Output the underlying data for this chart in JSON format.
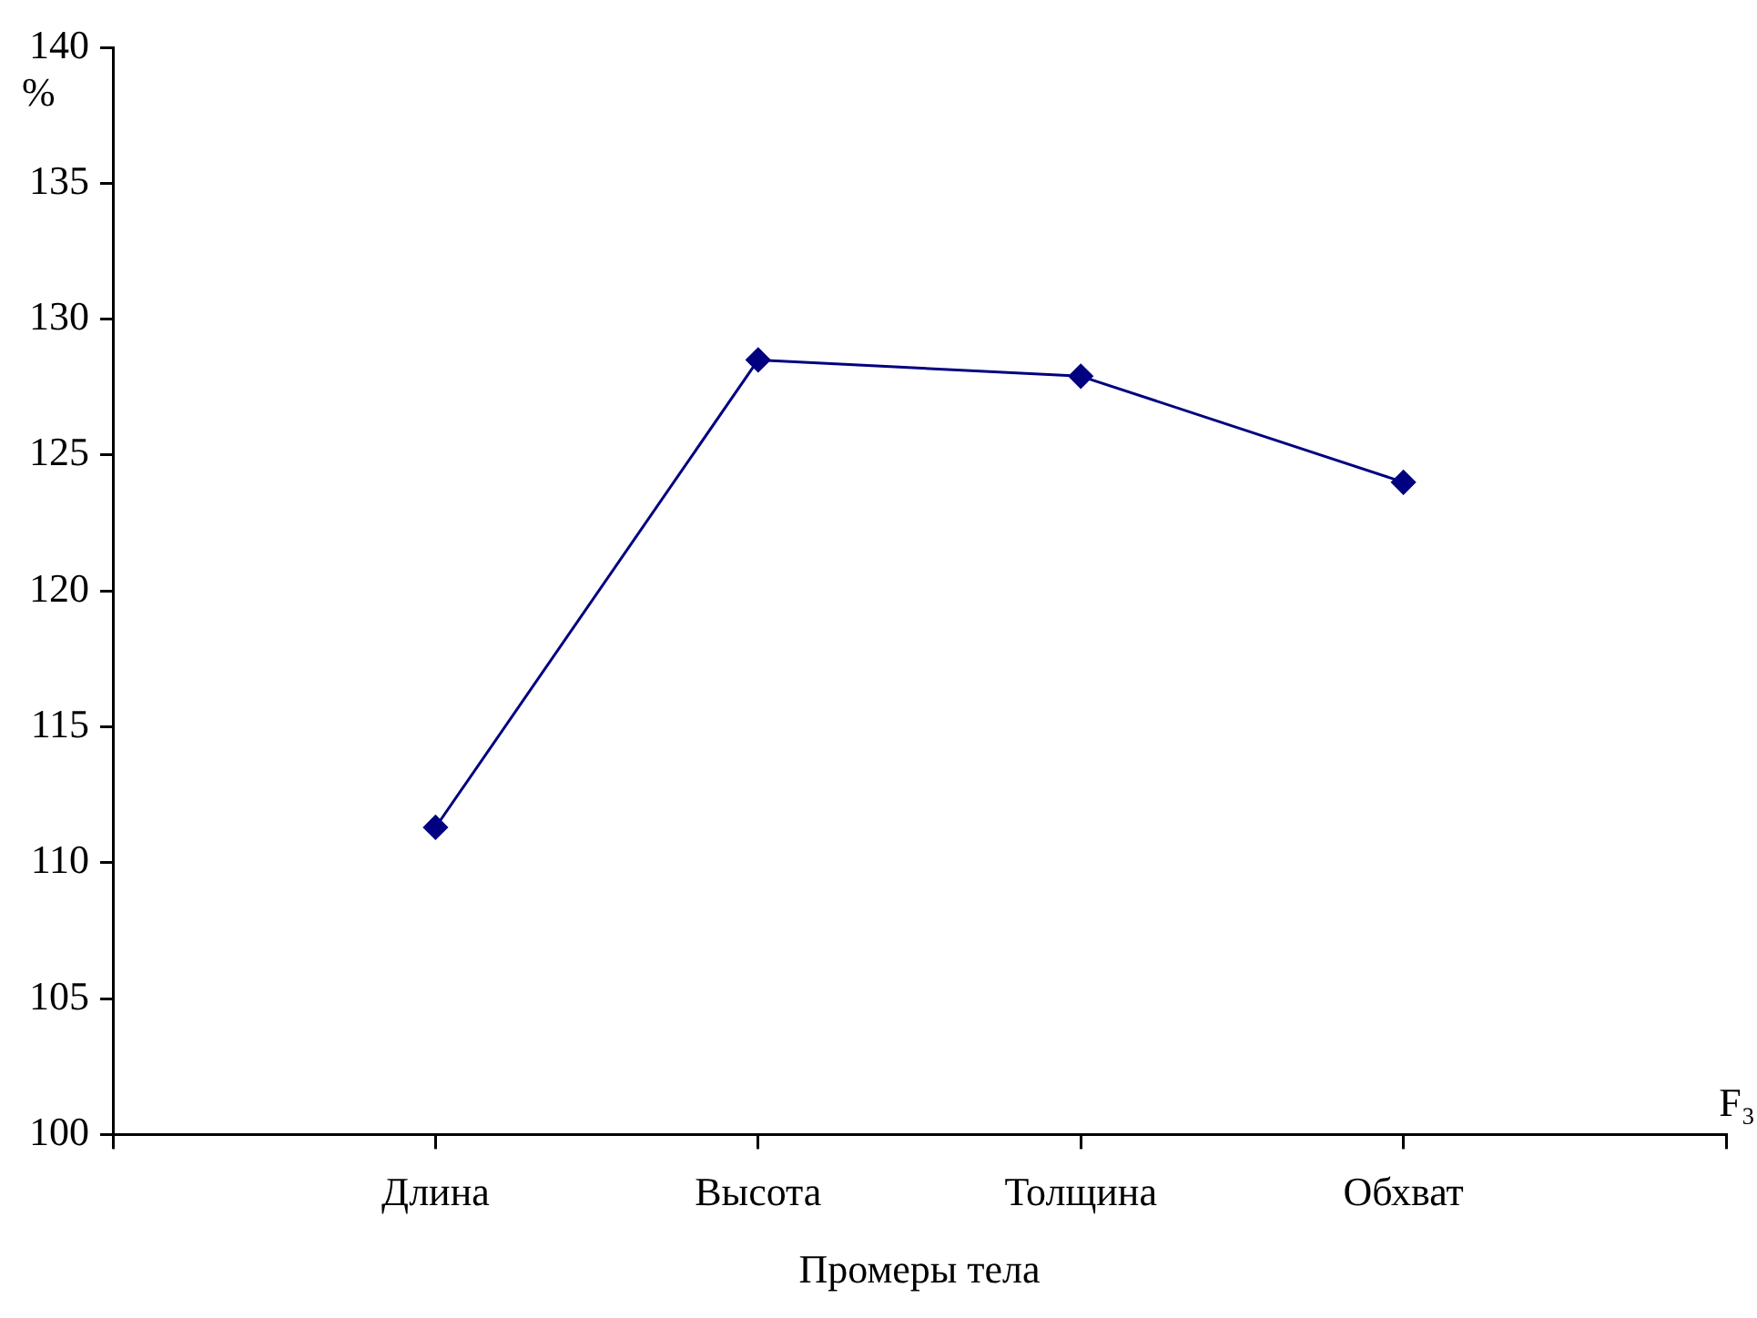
{
  "chart_data": {
    "type": "line",
    "xlabel": "Промеры тела",
    "ylabel": "%",
    "annotations": [
      "F₃"
    ],
    "categories": [
      null,
      "Длина",
      "Высота",
      "Толщина",
      "Обхват",
      null
    ],
    "series": [
      {
        "color": "#000080",
        "values": [
          null,
          111.3,
          128.5,
          127.9,
          124.0,
          null
        ]
      }
    ],
    "ylim": [
      100,
      140
    ],
    "yticks": [
      100,
      105,
      110,
      115,
      120,
      125,
      130,
      135,
      140
    ],
    "grid": false,
    "legend": false,
    "marker": "diamond",
    "line_style": "solid"
  }
}
